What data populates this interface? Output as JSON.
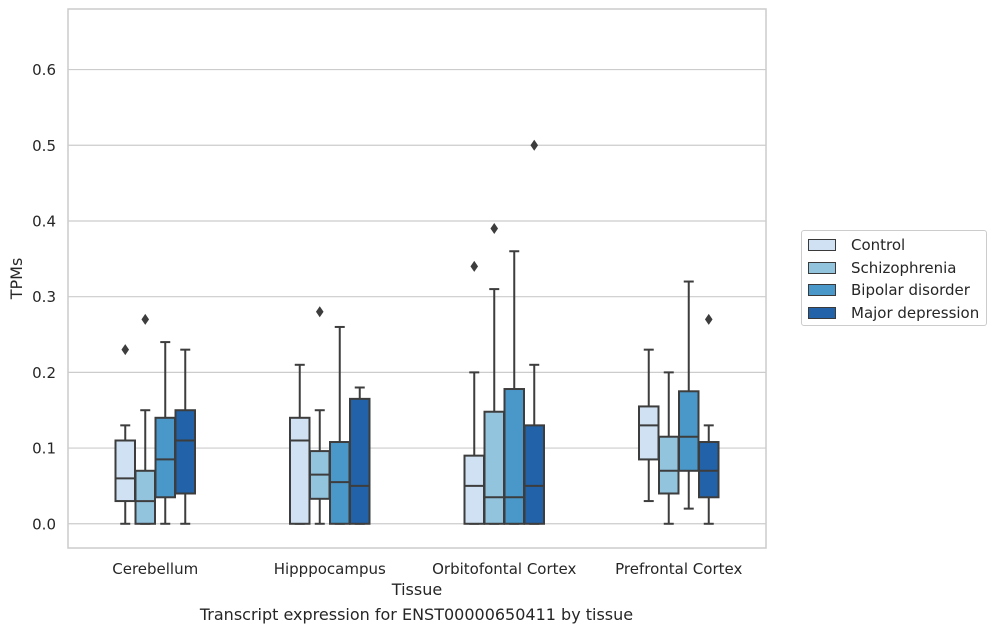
{
  "caption": "Transcript expression for ENST00000650411 by tissue",
  "chart_data": {
    "type": "box",
    "xlabel": "Tissue",
    "ylabel": "TPMs",
    "ylim": [
      -0.032,
      0.68
    ],
    "yticks": [
      0.0,
      0.1,
      0.2,
      0.3,
      0.4,
      0.5,
      0.6
    ],
    "ytick_labels": [
      "0.0",
      "0.1",
      "0.2",
      "0.3",
      "0.4",
      "0.5",
      "0.6"
    ],
    "categories": [
      "Cerebellum",
      "Hipppocampus",
      "Orbitofontal Cortex",
      "Prefrontal Cortex"
    ],
    "grid": "horizontal",
    "legend_position": "right",
    "series": [
      {
        "name": "Control",
        "color": "#cfe1f2",
        "boxes": [
          {
            "whisker_low": 0.0,
            "q1": 0.03,
            "median": 0.06,
            "q3": 0.11,
            "whisker_high": 0.13,
            "outliers": [
              0.23
            ]
          },
          {
            "whisker_low": 0.0,
            "q1": 0.0,
            "median": 0.11,
            "q3": 0.14,
            "whisker_high": 0.21,
            "outliers": []
          },
          {
            "whisker_low": 0.0,
            "q1": 0.0,
            "median": 0.05,
            "q3": 0.09,
            "whisker_high": 0.2,
            "outliers": [
              0.34
            ]
          },
          {
            "whisker_low": 0.03,
            "q1": 0.085,
            "median": 0.13,
            "q3": 0.155,
            "whisker_high": 0.23,
            "outliers": []
          }
        ]
      },
      {
        "name": "Schizophrenia",
        "color": "#93c4de",
        "boxes": [
          {
            "whisker_low": 0.0,
            "q1": 0.0,
            "median": 0.03,
            "q3": 0.07,
            "whisker_high": 0.15,
            "outliers": [
              0.27
            ]
          },
          {
            "whisker_low": 0.0,
            "q1": 0.033,
            "median": 0.065,
            "q3": 0.096,
            "whisker_high": 0.15,
            "outliers": [
              0.28
            ]
          },
          {
            "whisker_low": 0.0,
            "q1": 0.0,
            "median": 0.035,
            "q3": 0.148,
            "whisker_high": 0.31,
            "outliers": [
              0.39
            ]
          },
          {
            "whisker_low": 0.0,
            "q1": 0.04,
            "median": 0.07,
            "q3": 0.115,
            "whisker_high": 0.2,
            "outliers": []
          }
        ]
      },
      {
        "name": "Bipolar disorder",
        "color": "#4a98c9",
        "boxes": [
          {
            "whisker_low": 0.0,
            "q1": 0.035,
            "median": 0.085,
            "q3": 0.14,
            "whisker_high": 0.24,
            "outliers": []
          },
          {
            "whisker_low": 0.0,
            "q1": 0.0,
            "median": 0.055,
            "q3": 0.108,
            "whisker_high": 0.26,
            "outliers": []
          },
          {
            "whisker_low": 0.0,
            "q1": 0.0,
            "median": 0.035,
            "q3": 0.178,
            "whisker_high": 0.36,
            "outliers": []
          },
          {
            "whisker_low": 0.02,
            "q1": 0.07,
            "median": 0.115,
            "q3": 0.175,
            "whisker_high": 0.32,
            "outliers": []
          }
        ]
      },
      {
        "name": "Major depression",
        "color": "#2262a8",
        "boxes": [
          {
            "whisker_low": 0.0,
            "q1": 0.04,
            "median": 0.11,
            "q3": 0.15,
            "whisker_high": 0.23,
            "outliers": []
          },
          {
            "whisker_low": 0.0,
            "q1": 0.0,
            "median": 0.05,
            "q3": 0.165,
            "whisker_high": 0.18,
            "outliers": []
          },
          {
            "whisker_low": 0.0,
            "q1": 0.0,
            "median": 0.05,
            "q3": 0.13,
            "whisker_high": 0.21,
            "outliers": [
              0.5
            ]
          },
          {
            "whisker_low": 0.0,
            "q1": 0.035,
            "median": 0.07,
            "q3": 0.108,
            "whisker_high": 0.13,
            "outliers": [
              0.27
            ]
          }
        ]
      }
    ]
  }
}
